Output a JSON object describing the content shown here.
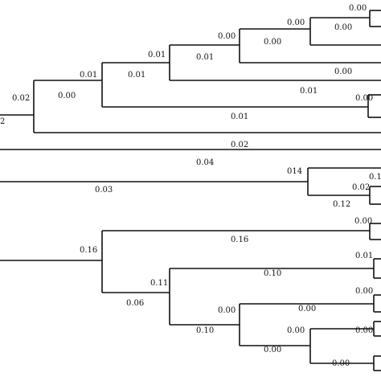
{
  "tree": {
    "branch_color": "#111111",
    "labels": {
      "l1": "0.00",
      "l2": "0.00",
      "l3": "0.00",
      "l4": "0.00",
      "l5": "0.00",
      "l6": "0.01",
      "l7": "0.01",
      "l8": "0.01",
      "l9": "0.01",
      "l10": "0.00",
      "l11": "0.01",
      "l12": "0.02",
      "l13": "0.00",
      "l14": "0.01",
      "l15": "2",
      "l16": "0.02",
      "l17": "0.04",
      "l18": "014",
      "l19": "0.1",
      "l20": "0.02",
      "l21": "0.03",
      "l22": "0.12",
      "l23": "0.00",
      "l24": "0.16",
      "l25": "0.16",
      "l26": "0.01",
      "l27": "0.10",
      "l28": "0.11",
      "l29": "0.00",
      "l30": "0.06",
      "l31": "0.00",
      "l32": "0.00",
      "l33": "0.10",
      "l34": "0.00",
      "l35": "0.00",
      "l36": "0.00"
    }
  }
}
